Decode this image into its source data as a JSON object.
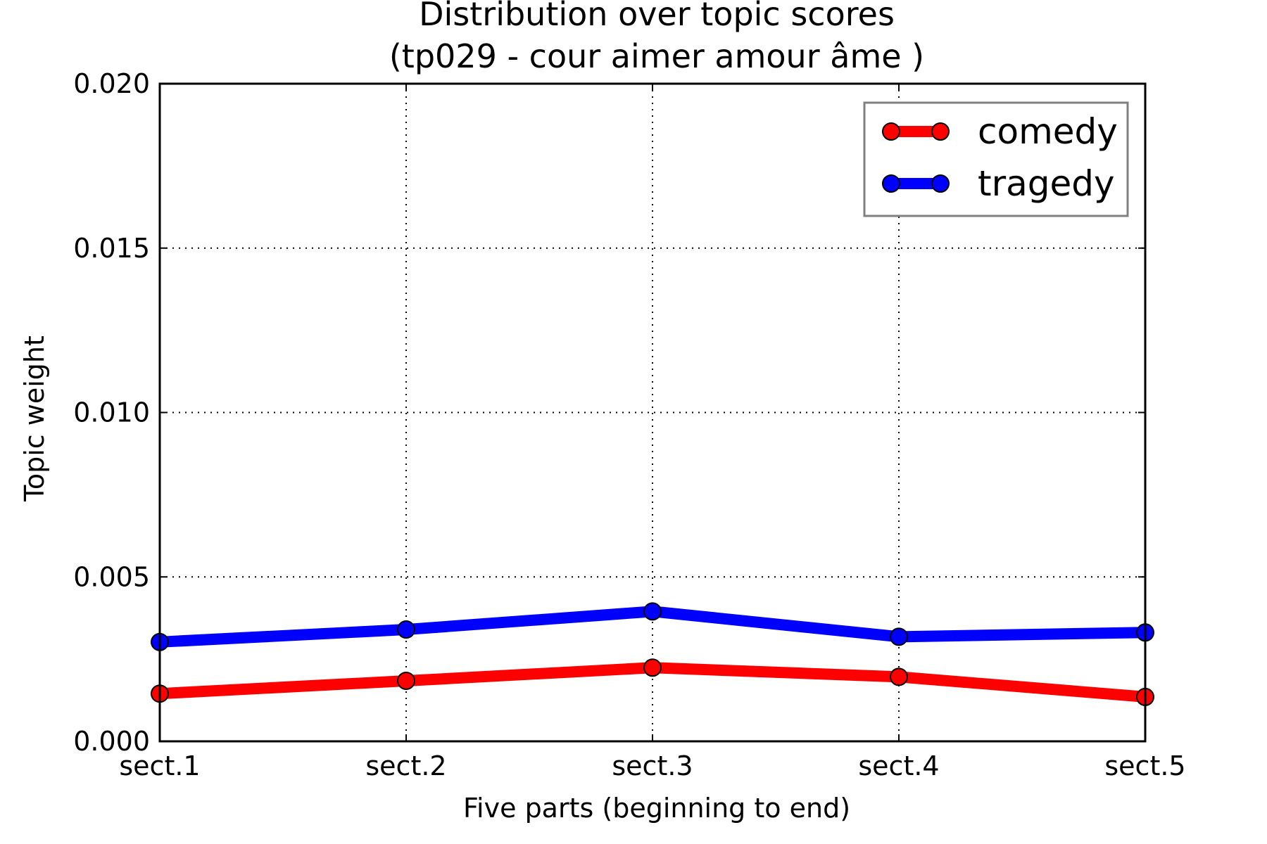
{
  "chart_data": {
    "type": "line",
    "title": "Distribution over topic scores",
    "subtitle": "(tp029 - cour aimer amour âme )",
    "xlabel": "Five parts (beginning to end)",
    "ylabel": "Topic weight",
    "categories": [
      "sect.1",
      "sect.2",
      "sect.3",
      "sect.4",
      "sect.5"
    ],
    "ylim": [
      0,
      0.02
    ],
    "yticks": [
      "0.000",
      "0.005",
      "0.010",
      "0.015",
      "0.020"
    ],
    "grid": true,
    "legend_position": "top-right",
    "series": [
      {
        "name": "comedy",
        "color": "#ff0000",
        "values": [
          0.00145,
          0.00184,
          0.00224,
          0.00196,
          0.00135
        ]
      },
      {
        "name": "tragedy",
        "color": "#0000ff",
        "values": [
          0.00302,
          0.0034,
          0.00395,
          0.00318,
          0.00331
        ]
      }
    ]
  }
}
